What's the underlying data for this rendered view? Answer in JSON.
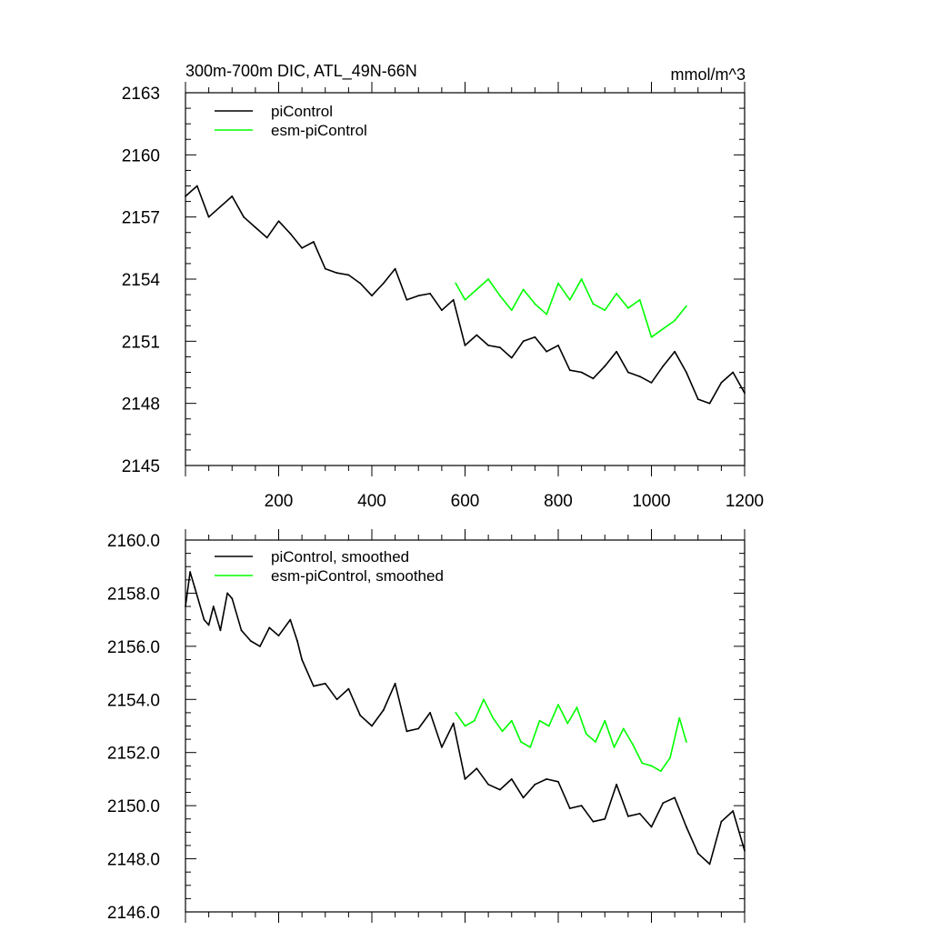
{
  "chart_data": [
    {
      "type": "line",
      "title": "300m-700m DIC, ATL_49N-66N",
      "units": "mmol/m^3",
      "ylim": [
        2145,
        2163
      ],
      "yticks": [
        2145,
        2148,
        2151,
        2154,
        2157,
        2160,
        2163
      ],
      "ytick_labels": [
        "2145",
        "2148",
        "2151",
        "2154",
        "2157",
        "2160",
        "2163"
      ],
      "xlim": [
        0,
        1200
      ],
      "xticks": [
        200,
        400,
        600,
        800,
        1000,
        1200
      ],
      "xtick_labels": [
        "200",
        "400",
        "600",
        "800",
        "1000",
        "1200"
      ],
      "legend_position": "top-left",
      "series": [
        {
          "name": "piControl",
          "color": "#000000",
          "x": [
            0,
            25,
            50,
            75,
            100,
            125,
            150,
            175,
            200,
            225,
            250,
            275,
            300,
            325,
            350,
            375,
            400,
            425,
            450,
            475,
            500,
            525,
            550,
            575,
            600,
            625,
            650,
            675,
            700,
            725,
            750,
            775,
            800,
            825,
            850,
            875,
            900,
            925,
            950,
            975,
            1000,
            1025,
            1050,
            1075,
            1100,
            1125,
            1150,
            1175,
            1200
          ],
          "values": [
            2158.0,
            2158.5,
            2157.0,
            2157.5,
            2158.0,
            2157.0,
            2156.5,
            2156.0,
            2156.8,
            2156.2,
            2155.5,
            2155.8,
            2154.5,
            2154.3,
            2154.2,
            2153.8,
            2153.2,
            2153.8,
            2154.5,
            2153.0,
            2153.2,
            2153.3,
            2152.5,
            2153.0,
            2150.8,
            2151.3,
            2150.8,
            2150.7,
            2150.2,
            2151.0,
            2151.2,
            2150.5,
            2150.8,
            2149.6,
            2149.5,
            2149.2,
            2149.8,
            2150.5,
            2149.5,
            2149.3,
            2149.0,
            2149.8,
            2150.5,
            2149.5,
            2148.2,
            2148.0,
            2149.0,
            2149.5,
            2148.5
          ]
        },
        {
          "name": "esm-piControl",
          "color": "#00ff00",
          "x": [
            580,
            600,
            625,
            650,
            675,
            700,
            725,
            750,
            775,
            800,
            825,
            850,
            875,
            900,
            925,
            950,
            975,
            1000,
            1025,
            1050,
            1075
          ],
          "values": [
            2153.8,
            2153.0,
            2153.5,
            2154.0,
            2153.2,
            2152.5,
            2153.5,
            2152.8,
            2152.3,
            2153.8,
            2153.0,
            2154.0,
            2152.8,
            2152.5,
            2153.3,
            2152.6,
            2153.0,
            2151.2,
            2151.6,
            2152.0,
            2152.7
          ]
        }
      ]
    },
    {
      "type": "line",
      "ylim": [
        2146.0,
        2160.0
      ],
      "yticks": [
        2146.0,
        2148.0,
        2150.0,
        2152.0,
        2154.0,
        2156.0,
        2158.0,
        2160.0
      ],
      "ytick_labels": [
        "2146.0",
        "2148.0",
        "2150.0",
        "2152.0",
        "2154.0",
        "2156.0",
        "2158.0",
        "2160.0"
      ],
      "xlim": [
        0,
        1200
      ],
      "xticks": [
        200,
        400,
        600,
        800,
        1000,
        1200
      ],
      "legend_position": "top-left",
      "series": [
        {
          "name": "piControl, smoothed",
          "color": "#000000",
          "x": [
            0,
            10,
            20,
            40,
            50,
            60,
            75,
            90,
            100,
            120,
            140,
            160,
            180,
            200,
            225,
            240,
            250,
            275,
            300,
            325,
            350,
            375,
            400,
            425,
            450,
            475,
            500,
            525,
            550,
            575,
            600,
            625,
            650,
            675,
            700,
            725,
            750,
            775,
            800,
            825,
            850,
            875,
            900,
            925,
            950,
            975,
            1000,
            1025,
            1050,
            1075,
            1100,
            1125,
            1150,
            1175,
            1200
          ],
          "values": [
            2157.5,
            2158.8,
            2158.2,
            2157.0,
            2156.8,
            2157.5,
            2156.6,
            2158.0,
            2157.8,
            2156.6,
            2156.2,
            2156.0,
            2156.7,
            2156.4,
            2157.0,
            2156.2,
            2155.5,
            2154.5,
            2154.6,
            2154.0,
            2154.4,
            2153.4,
            2153.0,
            2153.6,
            2154.6,
            2152.8,
            2152.9,
            2153.5,
            2152.2,
            2153.1,
            2151.0,
            2151.4,
            2150.8,
            2150.6,
            2151.0,
            2150.3,
            2150.8,
            2151.0,
            2150.9,
            2149.9,
            2150.0,
            2149.4,
            2149.5,
            2150.8,
            2149.6,
            2149.7,
            2149.2,
            2150.1,
            2150.3,
            2149.2,
            2148.2,
            2147.8,
            2149.4,
            2149.8,
            2148.3
          ]
        },
        {
          "name": "esm-piControl, smoothed",
          "color": "#00ff00",
          "x": [
            580,
            600,
            620,
            640,
            660,
            680,
            700,
            720,
            740,
            760,
            780,
            800,
            820,
            840,
            860,
            880,
            900,
            920,
            940,
            960,
            980,
            1000,
            1020,
            1040,
            1060,
            1075
          ],
          "values": [
            2153.5,
            2153.0,
            2153.2,
            2154.0,
            2153.3,
            2152.8,
            2153.2,
            2152.4,
            2152.2,
            2153.2,
            2153.0,
            2153.8,
            2153.1,
            2153.7,
            2152.7,
            2152.4,
            2153.2,
            2152.2,
            2152.9,
            2152.3,
            2151.6,
            2151.5,
            2151.3,
            2151.8,
            2153.3,
            2152.4
          ]
        }
      ]
    }
  ]
}
